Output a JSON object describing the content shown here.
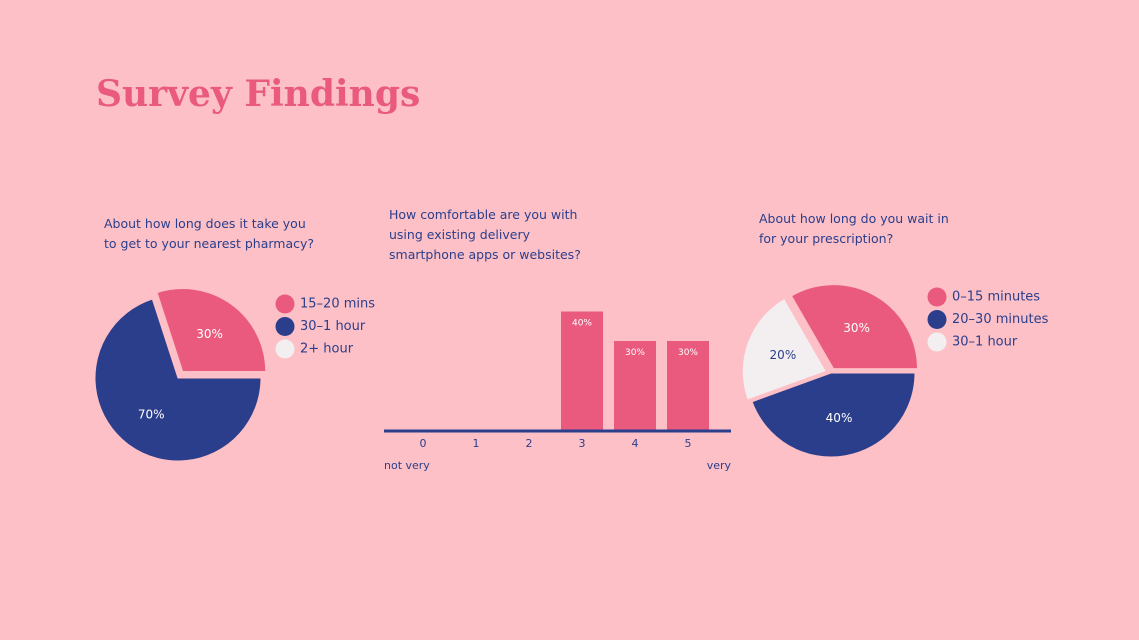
{
  "title": "Survey Findings",
  "chart_data": [
    {
      "type": "pie",
      "title": "About how long does it take you to get to your nearest pharmacy?",
      "categories": [
        "15–20 mins",
        "30–1 hour",
        "2+ hour"
      ],
      "values": [
        30,
        70,
        0
      ],
      "value_labels": [
        "30%",
        "70%",
        null
      ],
      "colors": [
        "#e95a7e",
        "#2b3e8c",
        "#f3eff1"
      ]
    },
    {
      "type": "bar",
      "title": "How comfortable are you with using existing delivery smartphone apps or websites?",
      "categories": [
        "0",
        "1",
        "2",
        "3",
        "4",
        "5"
      ],
      "values": [
        0,
        0,
        0,
        40,
        30,
        30
      ],
      "value_labels": [
        null,
        null,
        null,
        "40%",
        "30%",
        "30%"
      ],
      "color": "#e95a7e",
      "axis_color": "#2b3e8c",
      "annotations": [
        "not very",
        "very"
      ]
    },
    {
      "type": "pie",
      "title": "About how long do you wait in for your prescription?",
      "categories": [
        "0–15 minutes",
        "20–30 minutes",
        "30–1 hour"
      ],
      "values": [
        30,
        40,
        20
      ],
      "value_labels": [
        "30%",
        "40%",
        "20%"
      ],
      "colors": [
        "#e95a7e",
        "#2b3e8c",
        "#f3eff1"
      ]
    }
  ]
}
